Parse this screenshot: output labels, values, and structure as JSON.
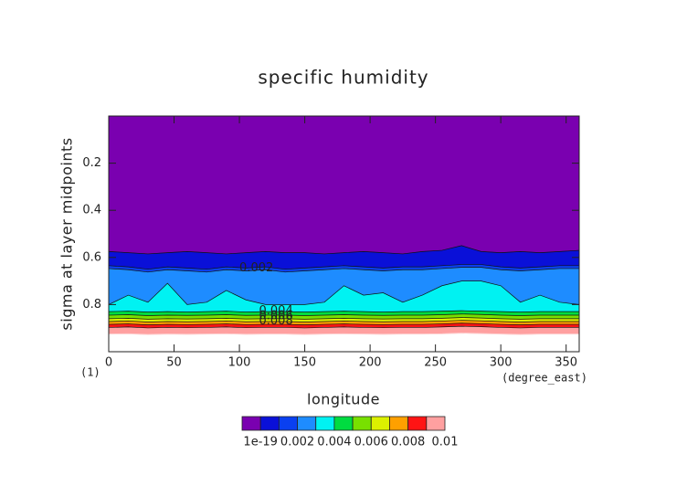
{
  "chart_data": {
    "type": "contour",
    "title": "specific humidity",
    "x_label": "longitude",
    "y_label": "sigma at layer midpoints",
    "x_units": "(degree_east)",
    "y_units": "(1)",
    "xlim": [
      0,
      360
    ],
    "xticks": [
      0,
      50,
      100,
      150,
      200,
      250,
      300,
      350
    ],
    "ylim": [
      0,
      1
    ],
    "yticks": [
      0.2,
      0.4,
      0.6,
      0.8
    ],
    "y_inverted": true,
    "levels": [
      1e-19,
      0.001,
      0.002,
      0.003,
      0.004,
      0.005,
      0.006,
      0.007,
      0.008,
      0.009,
      0.01
    ],
    "colorbar_ticks": [
      1e-19,
      0.002,
      0.004,
      0.006,
      0.008,
      0.01
    ],
    "colors": [
      "#7a00b0",
      "#0a10d8",
      "#0a40f0",
      "#1e8cff",
      "#00f2f2",
      "#00dc40",
      "#78e000",
      "#dcf000",
      "#ffa000",
      "#ff1414",
      "#ffa0a0"
    ],
    "x": [
      0,
      15,
      30,
      45,
      60,
      75,
      90,
      105,
      120,
      135,
      150,
      165,
      180,
      195,
      210,
      225,
      240,
      255,
      270,
      285,
      300,
      315,
      330,
      345,
      360
    ],
    "contours": [
      {
        "level": 0.001,
        "values": [
          0.575,
          0.58,
          0.585,
          0.58,
          0.575,
          0.58,
          0.585,
          0.58,
          0.575,
          0.58,
          0.58,
          0.585,
          0.58,
          0.575,
          0.58,
          0.585,
          0.575,
          0.57,
          0.55,
          0.575,
          0.58,
          0.575,
          0.58,
          0.575,
          0.57
        ]
      },
      {
        "level": 0.002,
        "values": [
          0.635,
          0.64,
          0.65,
          0.64,
          0.645,
          0.65,
          0.64,
          0.645,
          0.64,
          0.65,
          0.645,
          0.64,
          0.635,
          0.64,
          0.645,
          0.64,
          0.64,
          0.635,
          0.63,
          0.63,
          0.64,
          0.645,
          0.64,
          0.635,
          0.635
        ]
      },
      {
        "level": 0.003,
        "values": [
          0.647,
          0.652,
          0.662,
          0.652,
          0.657,
          0.662,
          0.652,
          0.657,
          0.652,
          0.662,
          0.657,
          0.652,
          0.647,
          0.652,
          0.657,
          0.652,
          0.652,
          0.647,
          0.642,
          0.642,
          0.652,
          0.657,
          0.652,
          0.647,
          0.647
        ]
      },
      {
        "level": 0.004,
        "values": [
          0.8,
          0.76,
          0.79,
          0.71,
          0.8,
          0.79,
          0.74,
          0.78,
          0.8,
          0.8,
          0.8,
          0.79,
          0.72,
          0.76,
          0.75,
          0.79,
          0.76,
          0.72,
          0.7,
          0.7,
          0.72,
          0.79,
          0.76,
          0.79,
          0.8
        ]
      },
      {
        "level": 0.005,
        "values": [
          0.83,
          0.828,
          0.832,
          0.83,
          0.832,
          0.83,
          0.828,
          0.832,
          0.83,
          0.83,
          0.832,
          0.83,
          0.828,
          0.83,
          0.832,
          0.83,
          0.83,
          0.828,
          0.826,
          0.828,
          0.83,
          0.832,
          0.83,
          0.83,
          0.83
        ]
      },
      {
        "level": 0.006,
        "values": [
          0.845,
          0.843,
          0.847,
          0.845,
          0.846,
          0.845,
          0.843,
          0.846,
          0.845,
          0.845,
          0.847,
          0.845,
          0.843,
          0.845,
          0.846,
          0.845,
          0.845,
          0.843,
          0.84,
          0.842,
          0.845,
          0.847,
          0.845,
          0.845,
          0.845
        ]
      },
      {
        "level": 0.007,
        "values": [
          0.86,
          0.858,
          0.862,
          0.86,
          0.861,
          0.86,
          0.858,
          0.861,
          0.86,
          0.86,
          0.862,
          0.86,
          0.858,
          0.86,
          0.861,
          0.86,
          0.86,
          0.858,
          0.855,
          0.857,
          0.86,
          0.862,
          0.86,
          0.86,
          0.86
        ]
      },
      {
        "level": 0.008,
        "values": [
          0.872,
          0.87,
          0.874,
          0.872,
          0.873,
          0.872,
          0.87,
          0.873,
          0.872,
          0.872,
          0.874,
          0.872,
          0.87,
          0.872,
          0.873,
          0.872,
          0.872,
          0.87,
          0.867,
          0.869,
          0.872,
          0.874,
          0.872,
          0.872,
          0.872
        ]
      },
      {
        "level": 0.009,
        "values": [
          0.884,
          0.882,
          0.886,
          0.884,
          0.885,
          0.884,
          0.882,
          0.885,
          0.884,
          0.884,
          0.886,
          0.884,
          0.882,
          0.884,
          0.885,
          0.884,
          0.884,
          0.882,
          0.879,
          0.881,
          0.884,
          0.886,
          0.884,
          0.884,
          0.884
        ]
      },
      {
        "level": 0.01,
        "values": [
          0.897,
          0.895,
          0.899,
          0.897,
          0.898,
          0.897,
          0.895,
          0.898,
          0.897,
          0.897,
          0.899,
          0.897,
          0.895,
          0.897,
          0.898,
          0.897,
          0.897,
          0.895,
          0.892,
          0.894,
          0.897,
          0.899,
          0.897,
          0.897,
          0.897
        ]
      }
    ],
    "data_bottom": [
      0.925,
      0.924,
      0.927,
      0.925,
      0.926,
      0.925,
      0.924,
      0.926,
      0.925,
      0.925,
      0.927,
      0.925,
      0.924,
      0.925,
      0.926,
      0.925,
      0.925,
      0.924,
      0.921,
      0.923,
      0.925,
      0.927,
      0.925,
      0.925,
      0.925
    ],
    "contour_labels": [
      {
        "level": 0.002,
        "x": 100,
        "y": 0.645
      },
      {
        "level": 0.004,
        "x": 115,
        "y": 0.828
      },
      {
        "level": 0.006,
        "x": 115,
        "y": 0.848
      },
      {
        "level": 0.008,
        "x": 115,
        "y": 0.87
      }
    ]
  }
}
